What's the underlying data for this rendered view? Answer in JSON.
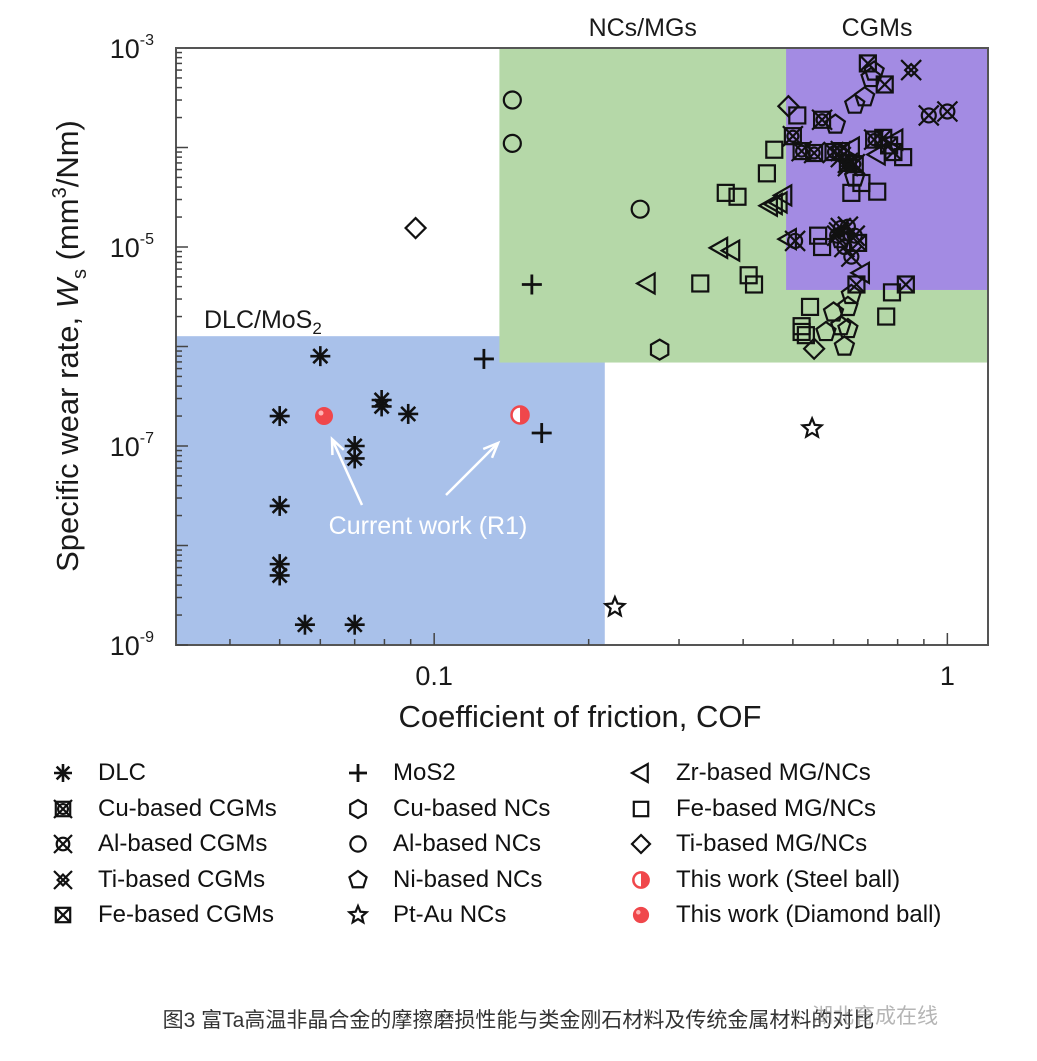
{
  "chart_data": {
    "type": "scatter",
    "title": "",
    "xlabel": "Coefficient of friction, COF",
    "ylabel": "Specific wear rate, W_s (mm^3/Nm)",
    "ylabel_parts": {
      "prefix": "Specific wear rate, ",
      "symbol": "W",
      "subscript": "s",
      "unit_open": " (mm",
      "unit_sup": "3",
      "unit_close": "/Nm)"
    },
    "xscale": "log",
    "yscale": "log",
    "xlim": [
      0.0314,
      1.2
    ],
    "ylim": [
      1e-09,
      0.001
    ],
    "x_ticks": [
      {
        "value": 0.1,
        "label": "0.1"
      },
      {
        "value": 1,
        "label": "1"
      }
    ],
    "y_ticks": [
      {
        "value": 0.001,
        "base": "10",
        "exp": "-3"
      },
      {
        "value": 1e-05,
        "base": "10",
        "exp": "-5"
      },
      {
        "value": 1e-07,
        "base": "10",
        "exp": "-7"
      },
      {
        "value": 1e-09,
        "base": "10",
        "exp": "-9"
      }
    ],
    "grid": false,
    "legend_position": "below",
    "regions": [
      {
        "name": "DLC/MoS2",
        "label_main": "DLC/MoS",
        "label_sub": "2",
        "x_range": [
          0.0314,
          0.215
        ],
        "y_range": [
          1e-09,
          1.27e-06
        ],
        "color": "#a9c1ea"
      },
      {
        "name": "NCs/MGs",
        "label_main": "NCs/MGs",
        "label_sub": "",
        "x_range": [
          0.134,
          1.2
        ],
        "y_range": [
          6.9e-07,
          0.001
        ],
        "color": "#b5d8a8"
      },
      {
        "name": "CGMs",
        "label_main": "CGMs",
        "label_sub": "",
        "x_range": [
          0.485,
          1.2
        ],
        "y_range": [
          3.7e-06,
          0.001
        ],
        "color": "#a38be3"
      }
    ],
    "annotation": {
      "text": "Current work (R1)",
      "color": "#ffffff",
      "arrows_to": [
        "This work (Diamond ball)",
        "This work (Steel ball)"
      ]
    },
    "series": [
      {
        "name": "DLC",
        "marker": "asterisk",
        "points": [
          [
            0.05,
            2e-07
          ],
          [
            0.05,
            2.5e-08
          ],
          [
            0.05,
            6.5e-09
          ],
          [
            0.05,
            5e-09
          ],
          [
            0.056,
            1.6e-09
          ],
          [
            0.06,
            8e-07
          ],
          [
            0.07,
            1e-07
          ],
          [
            0.07,
            7.5e-08
          ],
          [
            0.07,
            1.6e-09
          ],
          [
            0.079,
            2.9e-07
          ],
          [
            0.079,
            2.5e-07
          ],
          [
            0.089,
            2.1e-07
          ]
        ]
      },
      {
        "name": "MoS2",
        "marker": "plus",
        "points": [
          [
            0.125,
            7.5e-07
          ],
          [
            0.162,
            1.35e-07
          ],
          [
            0.155,
            4.2e-06
          ]
        ]
      },
      {
        "name": "Zr-based MG/NCs",
        "marker": "triangle-left",
        "points": [
          [
            0.26,
            4.3e-06
          ],
          [
            0.36,
            9.8e-06
          ],
          [
            0.38,
            9.2e-06
          ],
          [
            0.45,
            2.6e-05
          ],
          [
            0.46,
            2.7e-05
          ],
          [
            0.47,
            2.8e-05
          ],
          [
            0.48,
            3.3e-05
          ],
          [
            0.49,
            1.2e-05
          ],
          [
            0.73,
            8.5e-05
          ],
          [
            0.65,
            0.0001
          ],
          [
            0.68,
            5.5e-06
          ],
          [
            0.79,
            0.00012
          ]
        ]
      },
      {
        "name": "Fe-based MG/NCs",
        "marker": "square",
        "points": [
          [
            0.33,
            4.3e-06
          ],
          [
            0.37,
            3.5e-05
          ],
          [
            0.39,
            3.2e-05
          ],
          [
            0.41,
            5.2e-06
          ],
          [
            0.42,
            4.2e-06
          ],
          [
            0.445,
            5.5e-05
          ],
          [
            0.46,
            9.5e-05
          ],
          [
            0.51,
            0.00021
          ],
          [
            0.54,
            2.5e-06
          ],
          [
            0.52,
            1.6e-06
          ],
          [
            0.52,
            1.4e-06
          ],
          [
            0.53,
            1.3e-06
          ],
          [
            0.56,
            1.3e-05
          ],
          [
            0.57,
            1e-05
          ],
          [
            0.65,
            3.5e-05
          ],
          [
            0.68,
            4.4e-05
          ],
          [
            0.73,
            3.6e-05
          ],
          [
            0.76,
            2e-06
          ],
          [
            0.78,
            3.5e-06
          ],
          [
            0.82,
            8e-05
          ]
        ]
      },
      {
        "name": "Ti-based MG/NCs",
        "marker": "diamond",
        "points": [
          [
            0.092,
            1.55e-05
          ],
          [
            0.49,
            0.00026
          ],
          [
            0.55,
            9.5e-07
          ]
        ]
      },
      {
        "name": "Cu-based NCs",
        "marker": "hexagon",
        "points": [
          [
            0.275,
            9.3e-07
          ]
        ]
      },
      {
        "name": "Al-based NCs",
        "marker": "circle",
        "points": [
          [
            0.142,
            0.0003
          ],
          [
            0.142,
            0.00011
          ],
          [
            0.252,
            2.4e-05
          ]
        ]
      },
      {
        "name": "Ni-based NCs",
        "marker": "pentagon",
        "points": [
          [
            0.58,
            1.4e-06
          ],
          [
            0.6,
            2.2e-06
          ],
          [
            0.62,
            1.6e-06
          ],
          [
            0.63,
            1e-06
          ],
          [
            0.64,
            1.5e-06
          ],
          [
            0.64,
            2.5e-06
          ],
          [
            0.65,
            3.3e-06
          ],
          [
            0.62,
            1.2e-05
          ],
          [
            0.605,
            0.00017
          ],
          [
            0.66,
            0.00027
          ],
          [
            0.69,
            0.00032
          ],
          [
            0.71,
            0.0005
          ],
          [
            0.72,
            0.00058
          ],
          [
            0.66,
            5e-05
          ]
        ]
      },
      {
        "name": "Pt-Au NCs",
        "marker": "star",
        "points": [
          [
            0.225,
            2.4e-09
          ],
          [
            0.545,
            1.5e-07
          ]
        ]
      },
      {
        "name": "Cu-based CGMs",
        "marker": "box-x-circle",
        "points": [
          [
            0.5,
            0.00013
          ],
          [
            0.52,
            9.2e-05
          ],
          [
            0.55,
            8.8e-05
          ],
          [
            0.57,
            0.00019
          ],
          [
            0.6,
            9e-05
          ],
          [
            0.62,
            9.2e-05
          ],
          [
            0.64,
            7e-05
          ],
          [
            0.66,
            6.8e-05
          ],
          [
            0.72,
            0.00012
          ]
        ]
      },
      {
        "name": "Al-based CGMs",
        "marker": "circle-x",
        "points": [
          [
            0.505,
            1.15e-05
          ],
          [
            0.61,
            1.3e-05
          ],
          [
            0.62,
            1.55e-05
          ],
          [
            0.63,
            1e-05
          ],
          [
            0.64,
            1.6e-05
          ],
          [
            0.65,
            8e-06
          ],
          [
            0.66,
            1.3e-05
          ],
          [
            0.92,
            0.00021
          ],
          [
            1.0,
            0.00023
          ]
        ]
      },
      {
        "name": "Ti-based CGMs",
        "marker": "double-x",
        "points": [
          [
            0.85,
            0.0006
          ],
          [
            0.62,
            8e-05
          ],
          [
            0.64,
            6.5e-05
          ],
          [
            0.615,
            1.4e-05
          ]
        ]
      },
      {
        "name": "Fe-based CGMs",
        "marker": "box-x",
        "points": [
          [
            0.7,
            0.0007
          ],
          [
            0.755,
            0.00043
          ],
          [
            0.75,
            0.000125
          ],
          [
            0.77,
            0.000105
          ],
          [
            0.785,
            9e-05
          ],
          [
            0.665,
            4.2e-06
          ],
          [
            0.83,
            4.2e-06
          ],
          [
            0.67,
            1.1e-05
          ]
        ]
      },
      {
        "name": "This work (Steel ball)",
        "marker": "half-circle-red",
        "color": "#f0474b",
        "points": [
          [
            0.147,
            2.05e-07
          ]
        ]
      },
      {
        "name": "This work (Diamond ball)",
        "marker": "filled-circle-red",
        "color": "#f0474b",
        "points": [
          [
            0.061,
            2e-07
          ]
        ]
      }
    ]
  },
  "legend": {
    "columns": [
      [
        {
          "marker": "asterisk",
          "label": "DLC"
        },
        {
          "marker": "box-x-circle",
          "label": "Cu-based CGMs"
        },
        {
          "marker": "circle-x",
          "label": "Al-based CGMs"
        },
        {
          "marker": "double-x",
          "label": "Ti-based CGMs"
        },
        {
          "marker": "box-x",
          "label": "Fe-based CGMs"
        }
      ],
      [
        {
          "marker": "plus",
          "label": "MoS2"
        },
        {
          "marker": "hexagon",
          "label": "Cu-based NCs"
        },
        {
          "marker": "circle",
          "label": "Al-based NCs"
        },
        {
          "marker": "pentagon",
          "label": "Ni-based NCs"
        },
        {
          "marker": "star",
          "label": "Pt-Au NCs"
        }
      ],
      [
        {
          "marker": "triangle-left",
          "label": "Zr-based MG/NCs"
        },
        {
          "marker": "square",
          "label": "Fe-based MG/NCs"
        },
        {
          "marker": "diamond",
          "label": "Ti-based MG/NCs"
        },
        {
          "marker": "half-circle-red",
          "label": "This work (Steel ball)"
        },
        {
          "marker": "filled-circle-red",
          "label": "This work (Diamond ball)"
        }
      ]
    ]
  },
  "caption": "图3 富Ta高温非晶合金的摩擦磨损性能与类金刚石材料及传统金属材料的对比",
  "watermark": "湖北育成在线"
}
